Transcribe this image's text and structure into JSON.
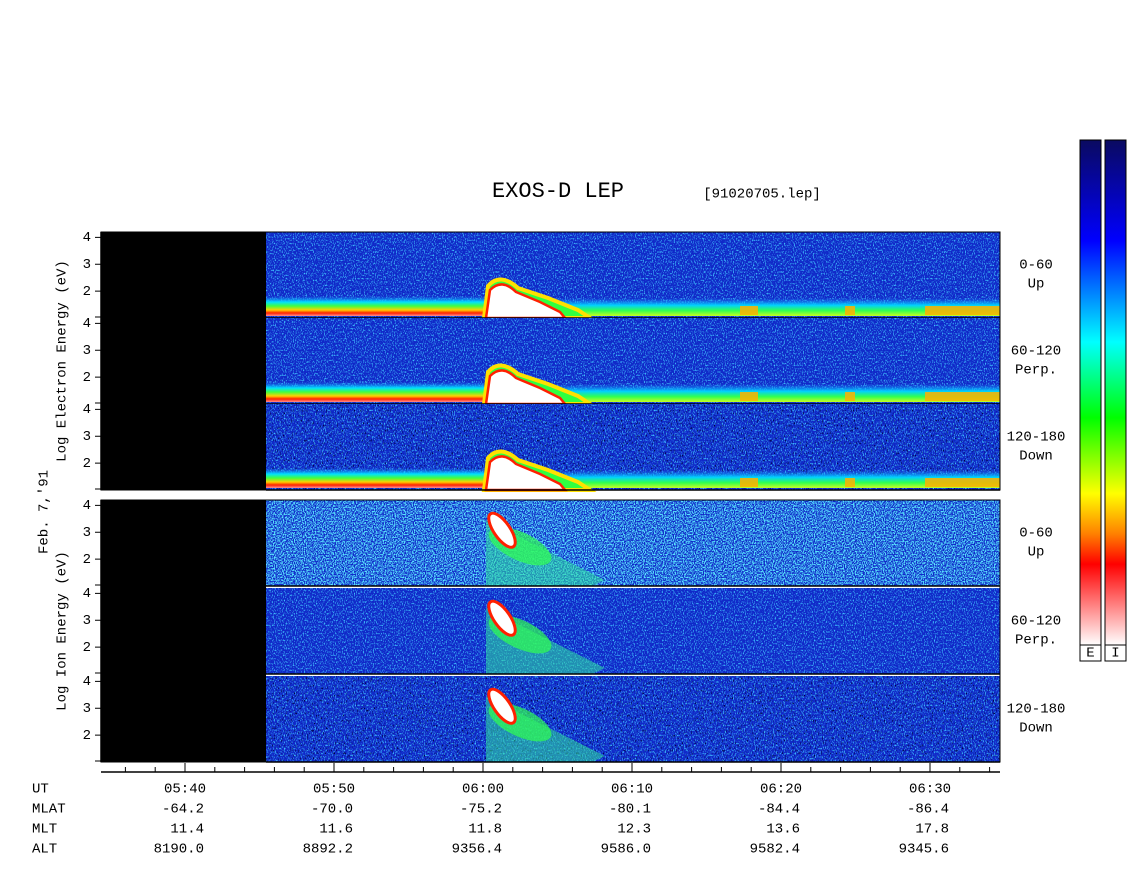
{
  "header": {
    "title": "EXOS-D LEP",
    "file": "[91020705.lep]"
  },
  "date": "Feb. 7,'91",
  "energy_axis": {
    "ylim": [
      1,
      4.2
    ],
    "yticks": [
      2,
      3,
      4
    ]
  },
  "electron": {
    "axis_label": "Log  Electron  Energy (eV)",
    "panels": [
      {
        "range": "0-60",
        "direction": "Up"
      },
      {
        "range": "60-120",
        "direction": "Perp."
      },
      {
        "range": "120-180",
        "direction": "Down"
      }
    ]
  },
  "ion": {
    "axis_label": "Log  Ion  Energy (eV)",
    "panels": [
      {
        "range": "0-60",
        "direction": "Up"
      },
      {
        "range": "60-120",
        "direction": "Perp."
      },
      {
        "range": "120-180",
        "direction": "Down"
      }
    ]
  },
  "colorbar_labels": [
    "E",
    "I"
  ],
  "time_table": {
    "row_labels": [
      "UT",
      "MLAT",
      "MLT",
      "ALT"
    ],
    "columns": [
      [
        "05:40",
        "-64.2",
        "11.4",
        "8190.0"
      ],
      [
        "05:50",
        "-70.0",
        "11.6",
        "8892.2"
      ],
      [
        "06:00",
        "-75.2",
        "11.8",
        "9356.4"
      ],
      [
        "06:10",
        "-80.1",
        "12.3",
        "9586.0"
      ],
      [
        "06:20",
        "-84.4",
        "13.6",
        "9582.4"
      ],
      [
        "06:30",
        "-86.4",
        "17.8",
        "9345.6"
      ]
    ]
  }
}
